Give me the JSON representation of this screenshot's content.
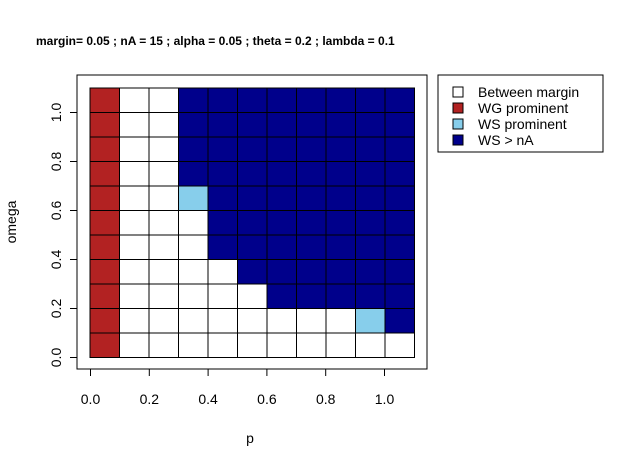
{
  "chart_data": {
    "type": "heatmap",
    "title": "margin= 0.05 ; nA = 15 ; alpha = 0.05 ; theta = 0.2 ; lambda = 0.1",
    "xlabel": "p",
    "ylabel": "omega",
    "xlim": [
      0,
      1
    ],
    "ylim": [
      0,
      1
    ],
    "x_ticks": [
      "0.0",
      "0.2",
      "0.4",
      "0.6",
      "0.8",
      "1.0"
    ],
    "y_ticks": [
      "0.0",
      "0.2",
      "0.4",
      "0.6",
      "0.8",
      "1.0"
    ],
    "x_values": [
      0.0,
      0.1,
      0.2,
      0.3,
      0.4,
      0.5,
      0.6,
      0.7,
      0.8,
      0.9,
      1.0
    ],
    "y_values": [
      0.0,
      0.1,
      0.2,
      0.3,
      0.4,
      0.5,
      0.6,
      0.7,
      0.8,
      0.9,
      1.0
    ],
    "legend_position": "top-right",
    "categories": [
      {
        "code": 0,
        "label": "Between margin",
        "color": "#ffffff"
      },
      {
        "code": 1,
        "label": "WG prominent",
        "color": "#b22222"
      },
      {
        "code": 2,
        "label": "WS prominent",
        "color": "#87ceeb"
      },
      {
        "code": 3,
        "label": "WS > nA",
        "color": "#00008b"
      }
    ],
    "grid_rows_top_to_bottom": [
      [
        1,
        0,
        0,
        3,
        3,
        3,
        3,
        3,
        3,
        3,
        3
      ],
      [
        1,
        0,
        0,
        3,
        3,
        3,
        3,
        3,
        3,
        3,
        3
      ],
      [
        1,
        0,
        0,
        3,
        3,
        3,
        3,
        3,
        3,
        3,
        3
      ],
      [
        1,
        0,
        0,
        3,
        3,
        3,
        3,
        3,
        3,
        3,
        3
      ],
      [
        1,
        0,
        0,
        2,
        3,
        3,
        3,
        3,
        3,
        3,
        3
      ],
      [
        1,
        0,
        0,
        0,
        3,
        3,
        3,
        3,
        3,
        3,
        3
      ],
      [
        1,
        0,
        0,
        0,
        3,
        3,
        3,
        3,
        3,
        3,
        3
      ],
      [
        1,
        0,
        0,
        0,
        0,
        3,
        3,
        3,
        3,
        3,
        3
      ],
      [
        1,
        0,
        0,
        0,
        0,
        0,
        3,
        3,
        3,
        3,
        3
      ],
      [
        1,
        0,
        0,
        0,
        0,
        0,
        0,
        0,
        0,
        2,
        3
      ],
      [
        1,
        0,
        0,
        0,
        0,
        0,
        0,
        0,
        0,
        0,
        0
      ]
    ]
  }
}
